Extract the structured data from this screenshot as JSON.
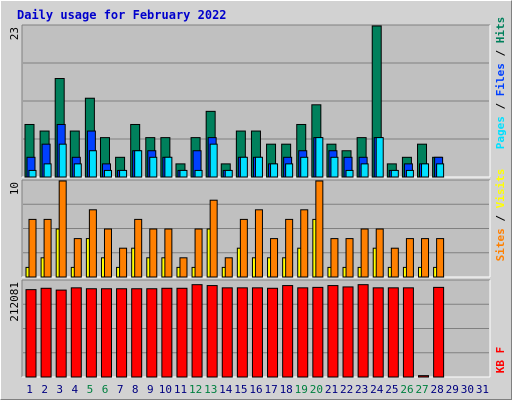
{
  "title": "Daily usage for February 2022",
  "colors": {
    "hits": "#00805c",
    "files": "#0040ff",
    "pages": "#00e0ff",
    "visits": "#ffff00",
    "sites": "#ff8000",
    "kbytes": "#ff0000",
    "weekend_day_label": "#008040",
    "weekday_label": "#000080"
  },
  "chart_data": [
    {
      "type": "bar",
      "panel": "hits-files-pages",
      "y_max_label": "23",
      "ylim": [
        0,
        23
      ],
      "axis_labels": [
        "Pages",
        "Files",
        "Hits"
      ],
      "x": [
        1,
        2,
        3,
        4,
        5,
        6,
        7,
        8,
        9,
        10,
        11,
        12,
        13,
        14,
        15,
        16,
        17,
        18,
        19,
        20,
        21,
        22,
        23,
        24,
        25,
        26,
        27,
        28,
        29,
        30,
        31
      ],
      "series": [
        {
          "name": "Hits",
          "values": [
            8,
            7,
            15,
            7,
            12,
            6,
            3,
            8,
            6,
            6,
            2,
            6,
            10,
            2,
            7,
            7,
            5,
            5,
            8,
            11,
            5,
            4,
            6,
            23,
            2,
            3,
            5,
            3,
            0,
            0,
            0
          ]
        },
        {
          "name": "Files",
          "values": [
            3,
            5,
            8,
            3,
            7,
            2,
            1,
            4,
            4,
            3,
            1,
            4,
            6,
            1,
            3,
            3,
            2,
            3,
            4,
            6,
            4,
            3,
            3,
            6,
            1,
            2,
            2,
            3,
            0,
            0,
            0
          ]
        },
        {
          "name": "Pages",
          "values": [
            1,
            2,
            5,
            2,
            4,
            1,
            1,
            4,
            3,
            3,
            1,
            1,
            5,
            1,
            3,
            3,
            2,
            2,
            3,
            6,
            3,
            1,
            2,
            6,
            1,
            1,
            2,
            2,
            0,
            0,
            0
          ]
        }
      ]
    },
    {
      "type": "bar",
      "panel": "visits-sites",
      "y_max_label": "10",
      "ylim": [
        0,
        10
      ],
      "axis_labels": [
        "Sites",
        "Visits"
      ],
      "x": [
        1,
        2,
        3,
        4,
        5,
        6,
        7,
        8,
        9,
        10,
        11,
        12,
        13,
        14,
        15,
        16,
        17,
        18,
        19,
        20,
        21,
        22,
        23,
        24,
        25,
        26,
        27,
        28,
        29,
        30,
        31
      ],
      "series": [
        {
          "name": "Visits",
          "values": [
            1,
            2,
            5,
            1,
            4,
            2,
            1,
            3,
            2,
            2,
            1,
            1,
            5,
            1,
            3,
            2,
            2,
            2,
            3,
            6,
            1,
            1,
            1,
            3,
            1,
            1,
            1,
            1,
            0,
            0,
            0
          ]
        },
        {
          "name": "Sites",
          "values": [
            6,
            6,
            10,
            4,
            7,
            5,
            3,
            6,
            5,
            5,
            2,
            5,
            8,
            2,
            6,
            7,
            4,
            6,
            7,
            10,
            4,
            4,
            5,
            5,
            3,
            4,
            4,
            4,
            0,
            0,
            0
          ]
        }
      ]
    },
    {
      "type": "bar",
      "panel": "kbytes",
      "y_max_label": "212081",
      "ylim": [
        0,
        212081
      ],
      "axis_labels": [
        "KB",
        "F"
      ],
      "x": [
        1,
        2,
        3,
        4,
        5,
        6,
        7,
        8,
        9,
        10,
        11,
        12,
        13,
        14,
        15,
        16,
        17,
        18,
        19,
        20,
        21,
        22,
        23,
        24,
        25,
        26,
        27,
        28,
        29,
        30,
        31
      ],
      "series": [
        {
          "name": "KB",
          "values": [
            193000,
            196000,
            192000,
            197000,
            195000,
            195000,
            195000,
            195000,
            195000,
            196000,
            196000,
            204000,
            202000,
            197000,
            197000,
            197000,
            196000,
            202000,
            197000,
            198000,
            202000,
            199000,
            204000,
            197000,
            197000,
            197000,
            3000,
            198000,
            0,
            0,
            0
          ]
        }
      ]
    }
  ]
}
